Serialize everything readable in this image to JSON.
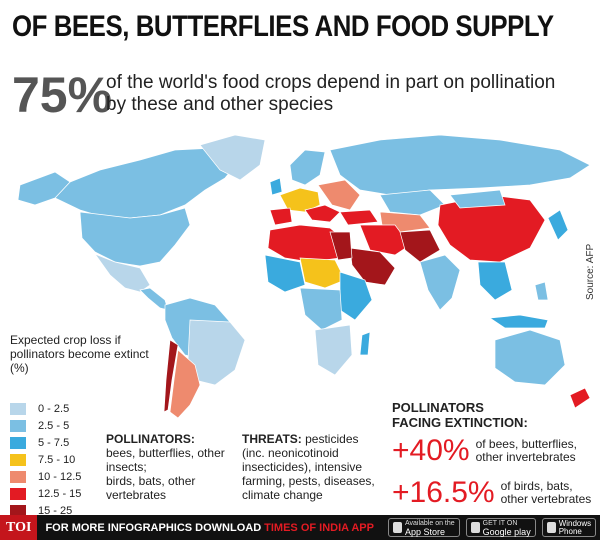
{
  "title": "OF BEES, BUTTERFLIES AND FOOD SUPPLY",
  "headline_pct": "75%",
  "headline_text": "of the world's food crops depend in part on pollination by these and other species",
  "source": "Source: AFP",
  "legend": {
    "title": "Expected crop loss if pollinators become extinct (%)",
    "items": [
      {
        "label": "0 - 2.5",
        "color": "#b8d6ea"
      },
      {
        "label": "2.5 - 5",
        "color": "#7bbfe3"
      },
      {
        "label": "5 - 7.5",
        "color": "#3aaade"
      },
      {
        "label": "7.5 - 10",
        "color": "#f5c21b"
      },
      {
        "label": "10 - 12.5",
        "color": "#ee8a6e"
      },
      {
        "label": "12.5 - 15",
        "color": "#e31b23"
      },
      {
        "label": "15 - 25",
        "color": "#a3161b"
      }
    ]
  },
  "pollinators": {
    "head": "POLLINATORS:",
    "line1": "bees, butterflies, other insects;",
    "line2": "birds, bats, other vertebrates"
  },
  "threats": {
    "head": "THREATS:",
    "text": "pesticides (inc. neonicotinoid insecticides), intensive farming, pests, diseases, climate change"
  },
  "extinction": {
    "title_line1": "POLLINATORS",
    "title_line2": "FACING EXTINCTION:",
    "stat1_value": "+40%",
    "stat1_text_line1": "of bees, butterflies,",
    "stat1_text_line2": "other invertebrates",
    "stat2_value": "+16.5%",
    "stat2_text_line1": "of birds, bats,",
    "stat2_text_line2": "other vertebrates"
  },
  "footer": {
    "logo": "TOI",
    "text": "FOR MORE  INFOGRAPHICS DOWNLOAD",
    "brand": "TIMES OF INDIA  APP",
    "appstore_small": "Available on the",
    "appstore": "App Store",
    "gplay_small": "GET IT ON",
    "gplay": "Google play",
    "windows_line1": "Windows",
    "windows_line2": "Phone"
  },
  "colors": {
    "c0": "#b8d6ea",
    "c1": "#7bbfe3",
    "c2": "#3aaade",
    "c3": "#f5c21b",
    "c4": "#ee8a6e",
    "c5": "#e31b23",
    "c6": "#a3161b"
  }
}
